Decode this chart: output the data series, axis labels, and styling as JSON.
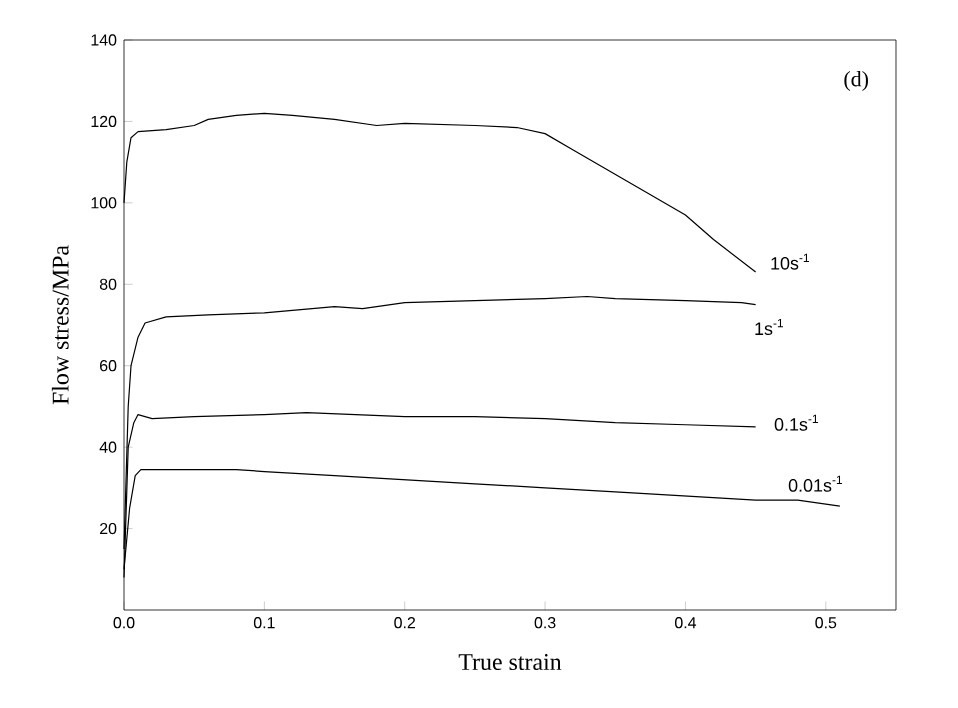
{
  "chart_data": {
    "type": "line",
    "xlabel": "True strain",
    "ylabel": "Flow stress/MPa",
    "xlim": [
      0,
      0.55
    ],
    "ylim": [
      0,
      140
    ],
    "xticks": [
      {
        "value": 0,
        "label": "0.0"
      },
      0.1,
      0.2,
      0.3,
      0.4,
      0.5
    ],
    "yticks": [
      20,
      40,
      60,
      80,
      100,
      120,
      140
    ],
    "marker": "none",
    "line_style": "solid",
    "annotations": [
      "(d)"
    ],
    "series": [
      {
        "name": "10s$^{-1}$",
        "color": "#000000",
        "x": [
          0,
          0.002,
          0.005,
          0.01,
          0.03,
          0.05,
          0.06,
          0.08,
          0.1,
          0.12,
          0.15,
          0.18,
          0.2,
          0.25,
          0.28,
          0.3,
          0.32,
          0.35,
          0.38,
          0.4,
          0.42,
          0.45
        ],
        "values": [
          100,
          110,
          116,
          117.5,
          118,
          119,
          120.5,
          121.5,
          122,
          121.5,
          120.5,
          119,
          119.5,
          119,
          118.5,
          117,
          113,
          107,
          101,
          97,
          91,
          83
        ]
      },
      {
        "name": "1s$^{-1}$",
        "color": "#000000",
        "x": [
          0,
          0.003,
          0.005,
          0.01,
          0.015,
          0.03,
          0.06,
          0.1,
          0.15,
          0.17,
          0.2,
          0.25,
          0.3,
          0.33,
          0.35,
          0.4,
          0.44,
          0.45
        ],
        "values": [
          15,
          50,
          60,
          67,
          70.5,
          72,
          72.5,
          73,
          74.5,
          74,
          75.5,
          76,
          76.5,
          77,
          76.5,
          76,
          75.5,
          75
        ]
      },
      {
        "name": "0.1s$^{-1}$",
        "color": "#000000",
        "x": [
          0,
          0.003,
          0.007,
          0.01,
          0.02,
          0.05,
          0.1,
          0.13,
          0.2,
          0.25,
          0.3,
          0.35,
          0.4,
          0.45
        ],
        "values": [
          8,
          40,
          46,
          48,
          47,
          47.5,
          48,
          48.5,
          47.5,
          47.5,
          47,
          46,
          45.5,
          45
        ]
      },
      {
        "name": "0.01s$^{-1}$",
        "color": "#000000",
        "x": [
          0,
          0.004,
          0.008,
          0.012,
          0.05,
          0.08,
          0.1,
          0.15,
          0.2,
          0.25,
          0.3,
          0.35,
          0.4,
          0.45,
          0.48,
          0.51
        ],
        "values": [
          10,
          25,
          33,
          34.5,
          34.5,
          34.5,
          34,
          33,
          32,
          31,
          30,
          29,
          28,
          27,
          27,
          25.5
        ]
      }
    ]
  }
}
